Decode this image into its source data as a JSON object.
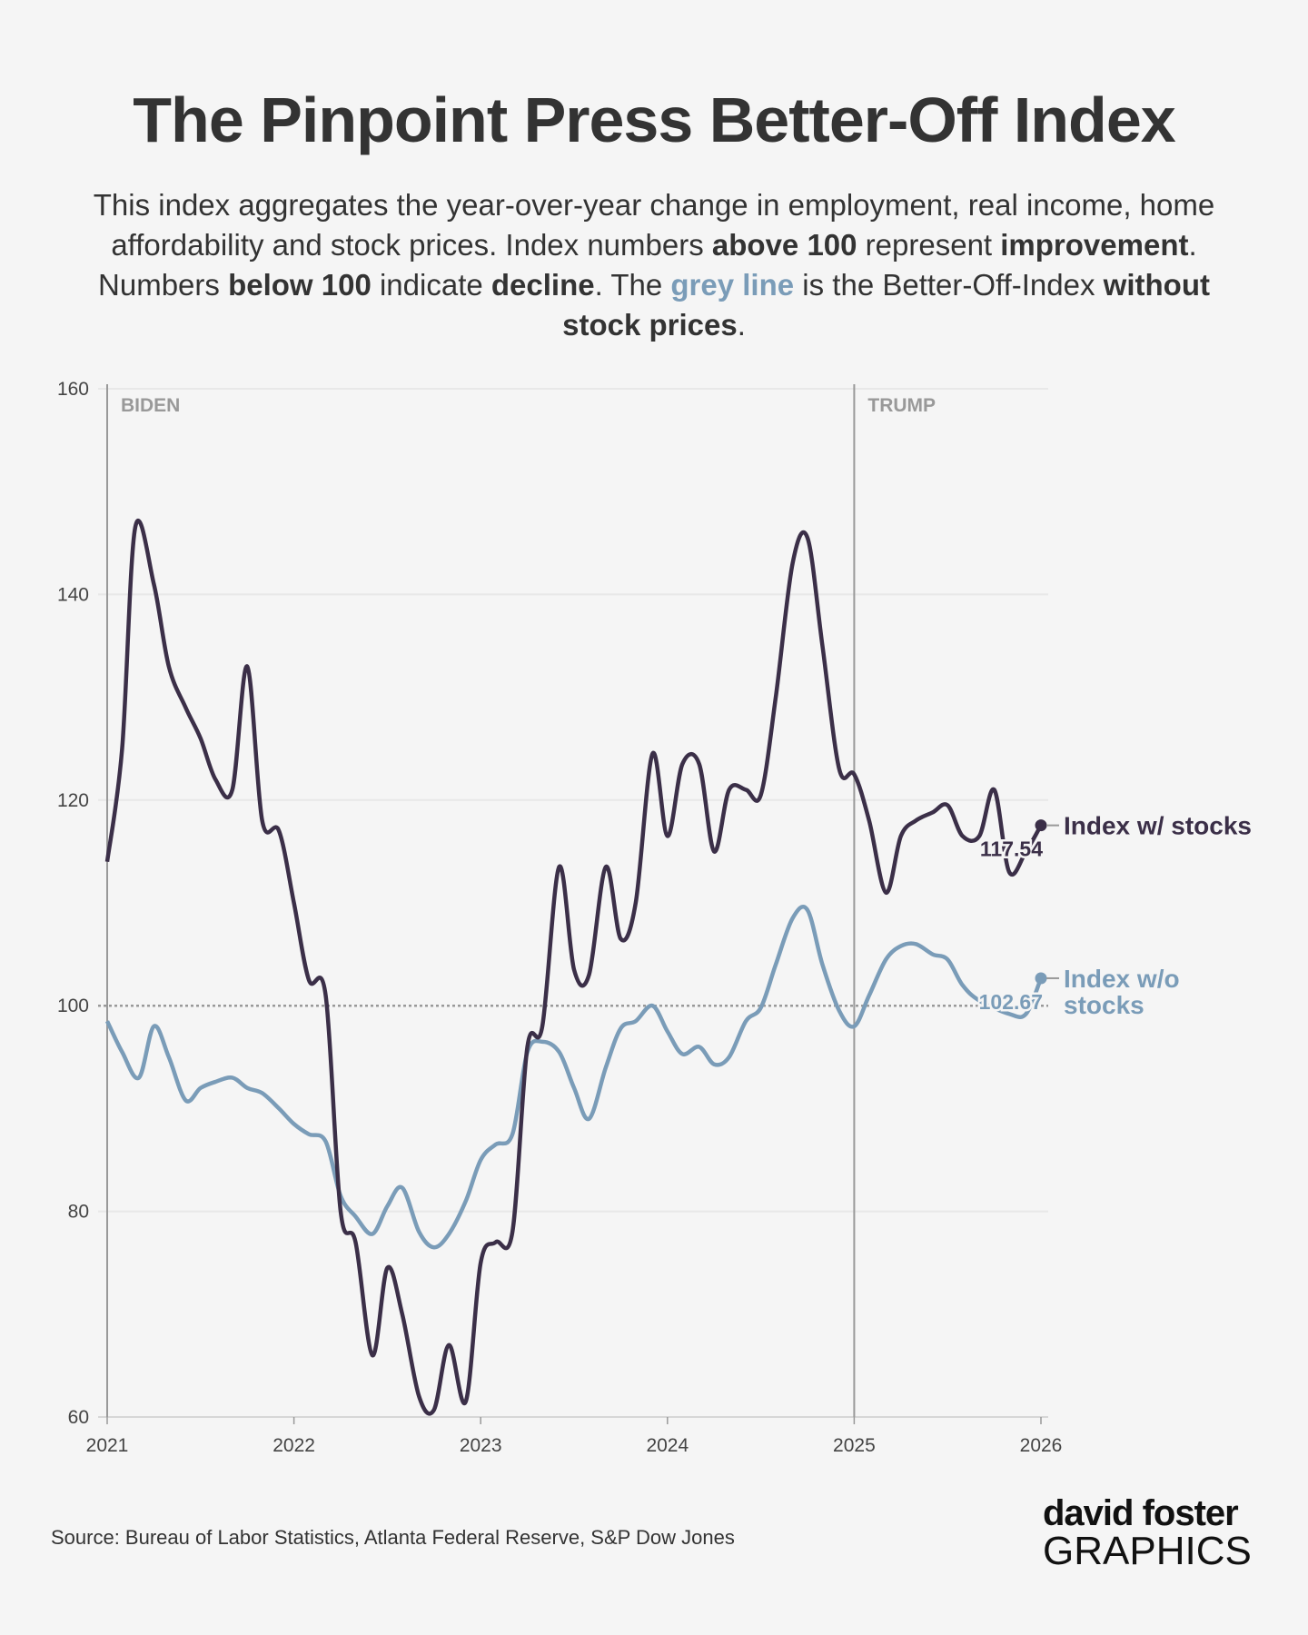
{
  "title": "The Pinpoint Press Better-Off Index",
  "subtitle": [
    {
      "text": "This index aggregates the year-over-year change in employment, real income, home affordability and stock prices. Index numbers ",
      "bold": false
    },
    {
      "text": "above 100",
      "bold": true
    },
    {
      "text": " represent ",
      "bold": false
    },
    {
      "text": "improvement",
      "bold": true
    },
    {
      "text": ". Numbers ",
      "bold": false
    },
    {
      "text": "below 100",
      "bold": true
    },
    {
      "text": " indicate ",
      "bold": false
    },
    {
      "text": "decline",
      "bold": true
    },
    {
      "text": ". The ",
      "bold": false
    },
    {
      "text": "grey line",
      "bold": true,
      "color": "#7a9cb8"
    },
    {
      "text": " is the Better-Off-Index ",
      "bold": false
    },
    {
      "text": "without stock prices",
      "bold": true
    },
    {
      "text": ".",
      "bold": false
    }
  ],
  "source": "Source: Bureau of Labor Statistics, Atlanta Federal Reserve, S&P Dow Jones",
  "logo": {
    "line1": "david foster",
    "line2": "GRAPHICS"
  },
  "chart_data": {
    "type": "line",
    "xlim": [
      2021,
      2026
    ],
    "ylim": [
      60,
      160
    ],
    "xticks": [
      "2021",
      "2022",
      "2023",
      "2024",
      "2025",
      "2026"
    ],
    "yticks": [
      "60",
      "80",
      "100",
      "120",
      "140",
      "160"
    ],
    "reference_line": 100,
    "eras": [
      {
        "label": "BIDEN",
        "start": 2021
      },
      {
        "label": "TRUMP",
        "start": 2025
      }
    ],
    "colors": {
      "stocks": "#3b2f48",
      "nostocks": "#7a9cb8",
      "grid": "#e8e8e8",
      "axis": "#999999"
    },
    "series": [
      {
        "name": "Index w/ stocks",
        "key": "stocks",
        "end_label": "117.54",
        "x": [
          2021.0,
          2021.08,
          2021.15,
          2021.25,
          2021.33,
          2021.42,
          2021.5,
          2021.58,
          2021.67,
          2021.75,
          2021.83,
          2021.92,
          2022.0,
          2022.08,
          2022.17,
          2022.25,
          2022.33,
          2022.42,
          2022.5,
          2022.58,
          2022.67,
          2022.75,
          2022.83,
          2022.92,
          2023.0,
          2023.08,
          2023.17,
          2023.25,
          2023.33,
          2023.42,
          2023.5,
          2023.58,
          2023.67,
          2023.75,
          2023.83,
          2023.92,
          2024.0,
          2024.08,
          2024.17,
          2024.25,
          2024.33,
          2024.42,
          2024.5,
          2024.58,
          2024.67,
          2024.75,
          2024.83,
          2024.92,
          2025.0,
          2025.08,
          2025.17,
          2025.25,
          2025.33,
          2025.42,
          2025.5,
          2025.58,
          2025.67,
          2025.75,
          2025.83,
          2025.92,
          2026.0
        ],
        "y": [
          114,
          125,
          146.5,
          141,
          133,
          129,
          126,
          122,
          121,
          133,
          118,
          117,
          110,
          102.5,
          101,
          80,
          77,
          66,
          74.5,
          70,
          62,
          60.7,
          67,
          61.5,
          75,
          77,
          78,
          96,
          98,
          113.5,
          103.5,
          103,
          113.5,
          106.5,
          110,
          124.5,
          116.5,
          123.5,
          123.5,
          115,
          121,
          121,
          120.5,
          130,
          143,
          145.5,
          135,
          123,
          122.5,
          118,
          111,
          116.5,
          118,
          118.8,
          119.5,
          116.5,
          116.5,
          121,
          113,
          115,
          117.54
        ]
      },
      {
        "name": "Index w/o stocks",
        "key": "nostocks",
        "end_label": "102.67",
        "x": [
          2021.0,
          2021.08,
          2021.17,
          2021.25,
          2021.33,
          2021.42,
          2021.5,
          2021.58,
          2021.67,
          2021.75,
          2021.83,
          2021.92,
          2022.0,
          2022.08,
          2022.17,
          2022.25,
          2022.33,
          2022.42,
          2022.5,
          2022.58,
          2022.67,
          2022.75,
          2022.83,
          2022.92,
          2023.0,
          2023.08,
          2023.17,
          2023.25,
          2023.33,
          2023.42,
          2023.5,
          2023.58,
          2023.67,
          2023.75,
          2023.83,
          2023.92,
          2024.0,
          2024.08,
          2024.17,
          2024.25,
          2024.33,
          2024.42,
          2024.5,
          2024.58,
          2024.67,
          2024.75,
          2024.83,
          2024.92,
          2025.0,
          2025.08,
          2025.17,
          2025.25,
          2025.33,
          2025.42,
          2025.5,
          2025.58,
          2025.67,
          2025.83,
          2025.92,
          2026.0
        ],
        "y": [
          98.5,
          95.5,
          93,
          98,
          95,
          90.8,
          92,
          92.6,
          93,
          92,
          91.5,
          90,
          88.5,
          87.5,
          86.8,
          81.5,
          79.5,
          77.8,
          80.5,
          82.3,
          78,
          76.5,
          77.8,
          81,
          85,
          86.5,
          87.5,
          95.5,
          96.5,
          95.5,
          92,
          89,
          94,
          97.8,
          98.5,
          100,
          97.5,
          95.3,
          96,
          94.3,
          95,
          98.5,
          99.8,
          104,
          108.5,
          109.3,
          104,
          99.5,
          98,
          101,
          104.5,
          105.8,
          106,
          105,
          104.5,
          102,
          100.5,
          99.2,
          99.2,
          102.67
        ]
      }
    ],
    "legend": [
      {
        "label_lines": [
          "Index w/ stocks"
        ],
        "key": "stocks"
      },
      {
        "label_lines": [
          "Index w/o",
          "stocks"
        ],
        "key": "nostocks"
      }
    ]
  }
}
